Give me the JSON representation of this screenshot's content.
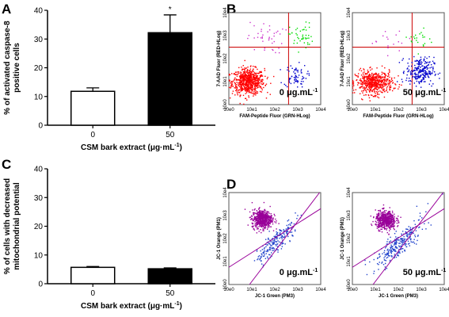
{
  "panel_letters": {
    "a": "A",
    "b": "B",
    "c": "C",
    "d": "D"
  },
  "chart_data": [
    {
      "panel": "A",
      "type": "bar",
      "categories": [
        "0",
        "50"
      ],
      "values": [
        11.8,
        32.2
      ],
      "errors": [
        1.2,
        6.2
      ],
      "bar_colors": [
        "#ffffff",
        "#000000"
      ],
      "significance": [
        "",
        "*"
      ],
      "ylabel": "% of activated caspase-8 positive cells",
      "ylabel_lines": [
        "% of activated caspase-8",
        "positive cells"
      ],
      "xlabel": "CSM bark extract (μg·mL⁻¹)",
      "xlabel_main": "CSM bark extract (μg·mL",
      "xlabel_sup": "-1",
      "xlabel_end": ")",
      "ylim": [
        0,
        40
      ],
      "yticks": [
        0,
        10,
        20,
        30,
        40
      ]
    },
    {
      "panel": "C",
      "type": "bar",
      "categories": [
        "0",
        "50"
      ],
      "values": [
        5.7,
        5.2
      ],
      "errors": [
        0.3,
        0.3
      ],
      "bar_colors": [
        "#ffffff",
        "#000000"
      ],
      "ylabel": "% of cells with decreased mitochondrial potential",
      "ylabel_lines": [
        "% of cells with decreased",
        "mitochondrial potential"
      ],
      "xlabel": "CSM bark extract (μg·mL⁻¹)",
      "xlabel_main": "CSM bark extract (μg·mL",
      "xlabel_sup": "-1",
      "xlabel_end": ")",
      "ylim": [
        0,
        40
      ],
      "yticks": [
        0,
        10,
        20,
        30,
        40
      ]
    },
    {
      "panel": "B",
      "type": "scatter",
      "xlabel": "FAM-Peptide Fluor (GRN-HLog)",
      "ylabel": "7-AAD Fluor (RED-HLog)",
      "log_ticks": [
        "10e0",
        "10e1",
        "10e2",
        "10e3",
        "10e4"
      ],
      "gate": {
        "x": 2.6,
        "y": 2.5
      },
      "plots": [
        {
          "condition_label": "0 μg.mL",
          "condition_sup": "-1",
          "populations": [
            {
              "color": "#ff0000",
              "n": 700,
              "cx": 0.85,
              "cy": 1.0,
              "sx": 0.35,
              "sy": 0.28
            },
            {
              "color": "#0000cc",
              "n": 70,
              "cx": 2.9,
              "cy": 1.25,
              "sx": 0.25,
              "sy": 0.25
            },
            {
              "color": "#cc33cc",
              "n": 40,
              "cx": 1.6,
              "cy": 2.9,
              "sx": 0.4,
              "sy": 0.35
            },
            {
              "color": "#00dd00",
              "n": 45,
              "cx": 3.15,
              "cy": 2.95,
              "sx": 0.25,
              "sy": 0.3
            }
          ]
        },
        {
          "condition_label": "50 μg.mL",
          "condition_sup": "-1",
          "populations": [
            {
              "color": "#ff0000",
              "n": 560,
              "cx": 0.95,
              "cy": 0.95,
              "sx": 0.4,
              "sy": 0.25
            },
            {
              "color": "#0000cc",
              "n": 240,
              "cx": 2.95,
              "cy": 1.45,
              "sx": 0.3,
              "sy": 0.3
            },
            {
              "color": "#cc33cc",
              "n": 18,
              "cx": 1.7,
              "cy": 2.85,
              "sx": 0.45,
              "sy": 0.3
            },
            {
              "color": "#00dd00",
              "n": 22,
              "cx": 3.0,
              "cy": 2.8,
              "sx": 0.25,
              "sy": 0.25
            }
          ]
        }
      ]
    },
    {
      "panel": "D",
      "type": "scatter",
      "xlabel": "JC-1 Green (PM3)",
      "ylabel": "JC-1 Orange (PM1)",
      "log_ticks": [
        "10e0",
        "10e1",
        "10e2",
        "10e3",
        "10e4"
      ],
      "gate_lines": [
        {
          "x0": 0,
          "y0": 0.75,
          "x1": 4,
          "y1": 3.3
        },
        {
          "x0": 0.9,
          "y0": 0,
          "x1": 3.95,
          "y1": 4
        }
      ],
      "plots": [
        {
          "condition_label": "0 μg.mL",
          "condition_sup": "-1",
          "populations": [
            {
              "color": "#990099",
              "n": 600,
              "cx": 1.45,
              "cy": 2.85,
              "sx": 0.22,
              "sy": 0.2
            },
            {
              "color": "#2244cc",
              "n": 220,
              "cx": 2.1,
              "cy": 1.9,
              "sx": 0.35,
              "sy": 0.35,
              "diag": true
            }
          ]
        },
        {
          "condition_label": "50 μg.mL",
          "condition_sup": "-1",
          "populations": [
            {
              "color": "#990099",
              "n": 520,
              "cx": 1.45,
              "cy": 2.8,
              "sx": 0.22,
              "sy": 0.2
            },
            {
              "color": "#2244cc",
              "n": 280,
              "cx": 2.0,
              "cy": 1.75,
              "sx": 0.4,
              "sy": 0.4,
              "diag": true
            }
          ]
        }
      ]
    }
  ]
}
